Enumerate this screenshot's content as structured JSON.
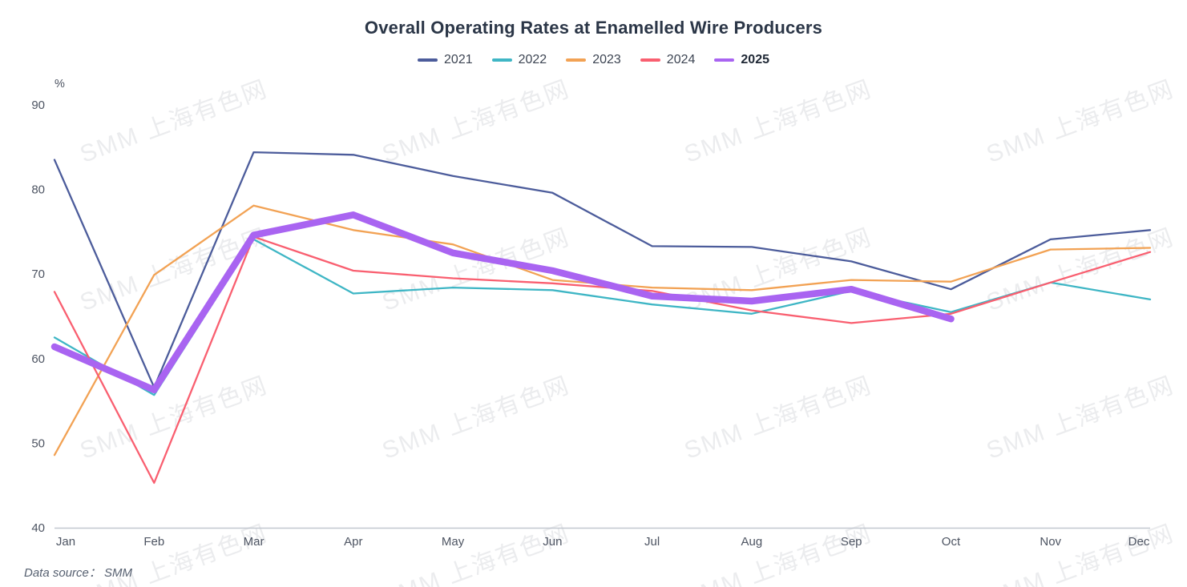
{
  "data_source": "Data source：  SMM",
  "watermark": {
    "text": "SMM 上海有色网"
  },
  "chart_data": {
    "type": "line",
    "title": "Overall Operating Rates at Enamelled Wire Producers",
    "unit_label": "%",
    "categories": [
      "Jan",
      "Feb",
      "Mar",
      "Apr",
      "May",
      "Jun",
      "Jul",
      "Aug",
      "Sep",
      "Oct",
      "Nov",
      "Dec"
    ],
    "ylim": [
      40,
      90
    ],
    "ytick_step": 10,
    "grid": false,
    "legend_position": "top",
    "axis_color": "#c2c7d0",
    "tick_label_color": "#4d5462",
    "series": [
      {
        "name": "2021",
        "color": "#4C5C9B",
        "line_width": 2.3,
        "emphasis": false,
        "values": [
          83.5,
          56.6,
          84.4,
          84.1,
          81.6,
          79.6,
          73.3,
          73.2,
          71.5,
          68.2,
          74.1,
          75.2
        ]
      },
      {
        "name": "2022",
        "color": "#3FB6C5",
        "line_width": 2.3,
        "emphasis": false,
        "values": [
          62.5,
          55.7,
          74.1,
          67.7,
          68.4,
          68.1,
          66.4,
          65.3,
          68.0,
          65.5,
          69.0,
          67.0
        ]
      },
      {
        "name": "2023",
        "color": "#F2A254",
        "line_width": 2.3,
        "emphasis": false,
        "values": [
          48.6,
          69.9,
          78.1,
          75.2,
          73.5,
          69.3,
          68.4,
          68.1,
          69.3,
          69.1,
          72.9,
          73.1
        ]
      },
      {
        "name": "2024",
        "color": "#F95F70",
        "line_width": 2.3,
        "emphasis": false,
        "values": [
          67.9,
          45.3,
          74.4,
          70.4,
          69.5,
          68.9,
          68.0,
          65.7,
          64.2,
          65.3,
          69.0,
          72.6
        ]
      },
      {
        "name": "2025",
        "color": "#A964F1",
        "line_width": 8.5,
        "emphasis": true,
        "values": [
          61.4,
          56.3,
          74.6,
          77.0,
          72.5,
          70.4,
          67.4,
          66.8,
          68.2,
          64.7
        ]
      }
    ]
  }
}
